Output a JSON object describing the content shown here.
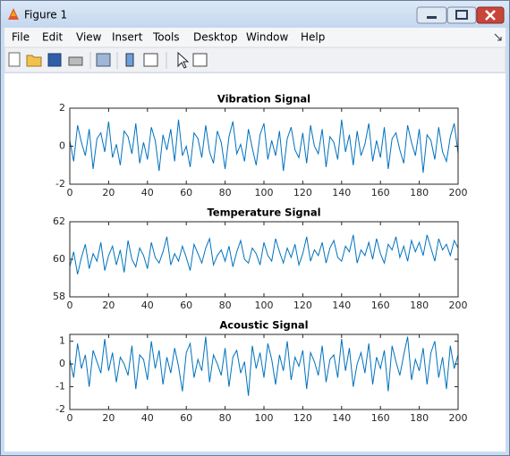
{
  "window": {
    "title": "Figure 1",
    "menu": [
      "File",
      "Edit",
      "View",
      "Insert",
      "Tools",
      "Desktop",
      "Window",
      "Help"
    ]
  },
  "chart_data": [
    {
      "type": "line",
      "title": "Vibration Signal",
      "x": [
        0,
        2,
        4,
        6,
        8,
        10,
        12,
        14,
        16,
        18,
        20,
        22,
        24,
        26,
        28,
        30,
        32,
        34,
        36,
        38,
        40,
        42,
        44,
        46,
        48,
        50,
        52,
        54,
        56,
        58,
        60,
        62,
        64,
        66,
        68,
        70,
        72,
        74,
        76,
        78,
        80,
        82,
        84,
        86,
        88,
        90,
        92,
        94,
        96,
        98,
        100,
        102,
        104,
        106,
        108,
        110,
        112,
        114,
        116,
        118,
        120,
        122,
        124,
        126,
        128,
        130,
        132,
        134,
        136,
        138,
        140,
        142,
        144,
        146,
        148,
        150,
        152,
        154,
        156,
        158,
        160,
        162,
        164,
        166,
        168,
        170,
        172,
        174,
        176,
        178,
        180,
        182,
        184,
        186,
        188,
        190,
        192,
        194,
        196,
        198,
        200
      ],
      "series": [
        {
          "name": "Vibration",
          "color": "#0072bd",
          "values": [
            0.3,
            -0.8,
            1.1,
            0.2,
            -0.5,
            0.9,
            -1.2,
            0.4,
            0.7,
            -0.3,
            1.3,
            -0.6,
            0.1,
            -1.0,
            0.8,
            0.5,
            -0.4,
            1.2,
            -0.9,
            0.2,
            -0.7,
            1.0,
            0.3,
            -1.3,
            0.6,
            -0.2,
            0.9,
            -0.8,
            1.4,
            -0.5,
            0.0,
            -1.1,
            0.7,
            0.4,
            -0.6,
            1.1,
            -0.3,
            -0.9,
            0.8,
            0.2,
            -1.2,
            0.5,
            1.3,
            -0.4,
            0.1,
            -0.8,
            0.9,
            -0.1,
            -1.0,
            0.6,
            1.2,
            -0.7,
            0.3,
            -0.5,
            0.8,
            -1.3,
            0.4,
            1.0,
            -0.2,
            -0.6,
            0.7,
            -0.9,
            1.1,
            0.0,
            -0.4,
            0.9,
            -1.1,
            0.5,
            0.2,
            -0.7,
            1.4,
            -0.3,
            0.6,
            -1.0,
            0.8,
            -0.5,
            0.1,
            1.2,
            -0.8,
            0.3,
            -0.6,
            1.0,
            -1.2,
            0.4,
            0.7,
            -0.2,
            -0.9,
            1.1,
            0.2,
            -0.5,
            0.9,
            -1.4,
            0.6,
            0.3,
            -0.7,
            1.0,
            -0.3,
            -0.8,
            0.5,
            1.2,
            -0.4
          ]
        }
      ],
      "xlim": [
        0,
        200
      ],
      "xticks": [
        0,
        20,
        40,
        60,
        80,
        100,
        120,
        140,
        160,
        180,
        200
      ],
      "ylim": [
        -2,
        2
      ],
      "yticks": [
        -2,
        0,
        2
      ],
      "grid": false
    },
    {
      "type": "line",
      "title": "Temperature Signal",
      "x": [
        0,
        2,
        4,
        6,
        8,
        10,
        12,
        14,
        16,
        18,
        20,
        22,
        24,
        26,
        28,
        30,
        32,
        34,
        36,
        38,
        40,
        42,
        44,
        46,
        48,
        50,
        52,
        54,
        56,
        58,
        60,
        62,
        64,
        66,
        68,
        70,
        72,
        74,
        76,
        78,
        80,
        82,
        84,
        86,
        88,
        90,
        92,
        94,
        96,
        98,
        100,
        102,
        104,
        106,
        108,
        110,
        112,
        114,
        116,
        118,
        120,
        122,
        124,
        126,
        128,
        130,
        132,
        134,
        136,
        138,
        140,
        142,
        144,
        146,
        148,
        150,
        152,
        154,
        156,
        158,
        160,
        162,
        164,
        166,
        168,
        170,
        172,
        174,
        176,
        178,
        180,
        182,
        184,
        186,
        188,
        190,
        192,
        194,
        196,
        198,
        200
      ],
      "series": [
        {
          "name": "Temperature",
          "color": "#0072bd",
          "values": [
            59.6,
            60.4,
            59.2,
            60.1,
            60.8,
            59.5,
            60.3,
            59.9,
            60.9,
            59.4,
            60.2,
            60.7,
            59.7,
            60.5,
            59.3,
            61.0,
            60.0,
            59.6,
            60.6,
            60.2,
            59.5,
            60.9,
            60.1,
            59.8,
            60.4,
            61.2,
            59.7,
            60.3,
            59.9,
            60.7,
            60.1,
            59.4,
            60.8,
            60.3,
            59.8,
            60.6,
            61.1,
            59.7,
            60.2,
            60.5,
            59.9,
            60.7,
            59.6,
            60.4,
            61.0,
            60.0,
            59.8,
            60.6,
            60.3,
            59.7,
            60.9,
            60.2,
            59.9,
            61.1,
            60.4,
            59.8,
            60.6,
            60.1,
            60.8,
            59.7,
            60.3,
            61.2,
            59.9,
            60.5,
            60.2,
            60.9,
            59.8,
            60.6,
            61.0,
            60.1,
            59.9,
            60.7,
            60.4,
            61.3,
            59.8,
            60.5,
            60.2,
            60.9,
            60.0,
            61.1,
            60.3,
            59.8,
            60.8,
            60.5,
            61.2,
            60.1,
            60.7,
            59.9,
            61.0,
            60.4,
            60.9,
            60.2,
            61.3,
            60.6,
            59.9,
            61.1,
            60.5,
            60.8,
            60.2,
            61.0,
            60.6
          ]
        }
      ],
      "xlim": [
        0,
        200
      ],
      "xticks": [
        0,
        20,
        40,
        60,
        80,
        100,
        120,
        140,
        160,
        180,
        200
      ],
      "ylim": [
        58,
        62
      ],
      "yticks": [
        58,
        60,
        62
      ],
      "grid": false
    },
    {
      "type": "line",
      "title": "Acoustic Signal",
      "x": [
        0,
        2,
        4,
        6,
        8,
        10,
        12,
        14,
        16,
        18,
        20,
        22,
        24,
        26,
        28,
        30,
        32,
        34,
        36,
        38,
        40,
        42,
        44,
        46,
        48,
        50,
        52,
        54,
        56,
        58,
        60,
        62,
        64,
        66,
        68,
        70,
        72,
        74,
        76,
        78,
        80,
        82,
        84,
        86,
        88,
        90,
        92,
        94,
        96,
        98,
        100,
        102,
        104,
        106,
        108,
        110,
        112,
        114,
        116,
        118,
        120,
        122,
        124,
        126,
        128,
        130,
        132,
        134,
        136,
        138,
        140,
        142,
        144,
        146,
        148,
        150,
        152,
        154,
        156,
        158,
        160,
        162,
        164,
        166,
        168,
        170,
        172,
        174,
        176,
        178,
        180,
        182,
        184,
        186,
        188,
        190,
        192,
        194,
        196,
        198,
        200
      ],
      "series": [
        {
          "name": "Acoustic",
          "color": "#0072bd",
          "values": [
            0.2,
            -0.6,
            0.9,
            -0.2,
            0.4,
            -1.0,
            0.6,
            0.1,
            -0.4,
            1.1,
            -0.3,
            0.5,
            -0.8,
            0.3,
            0.0,
            -0.5,
            0.8,
            -1.1,
            0.4,
            0.2,
            -0.7,
            1.0,
            -0.2,
            0.6,
            -0.9,
            0.3,
            -0.4,
            0.7,
            -0.1,
            -1.2,
            0.5,
            0.9,
            -0.6,
            0.2,
            -0.3,
            1.2,
            -0.8,
            0.4,
            0.0,
            -0.5,
            0.7,
            -1.0,
            0.3,
            0.6,
            -0.4,
            0.1,
            -1.4,
            0.8,
            -0.2,
            0.5,
            -0.6,
            0.9,
            0.2,
            -0.9,
            0.4,
            -0.3,
            1.0,
            -0.7,
            0.3,
            -0.1,
            0.6,
            -1.1,
            0.5,
            0.1,
            -0.5,
            0.8,
            -0.8,
            0.2,
            0.4,
            -0.6,
            1.1,
            -0.3,
            0.7,
            -1.0,
            0.0,
            0.5,
            -0.4,
            0.9,
            -0.9,
            0.3,
            -0.2,
            0.6,
            -1.2,
            0.8,
            0.1,
            -0.5,
            0.4,
            1.2,
            -0.7,
            0.2,
            -0.3,
            0.7,
            -0.9,
            0.5,
            1.0,
            -0.6,
            0.3,
            -1.1,
            0.8,
            -0.2,
            0.4
          ]
        }
      ],
      "xlim": [
        0,
        200
      ],
      "xticks": [
        0,
        20,
        40,
        60,
        80,
        100,
        120,
        140,
        160,
        180,
        200
      ],
      "ylim": [
        -2,
        1.3
      ],
      "yticks": [
        -2,
        -1,
        0,
        1
      ],
      "grid": false
    }
  ]
}
